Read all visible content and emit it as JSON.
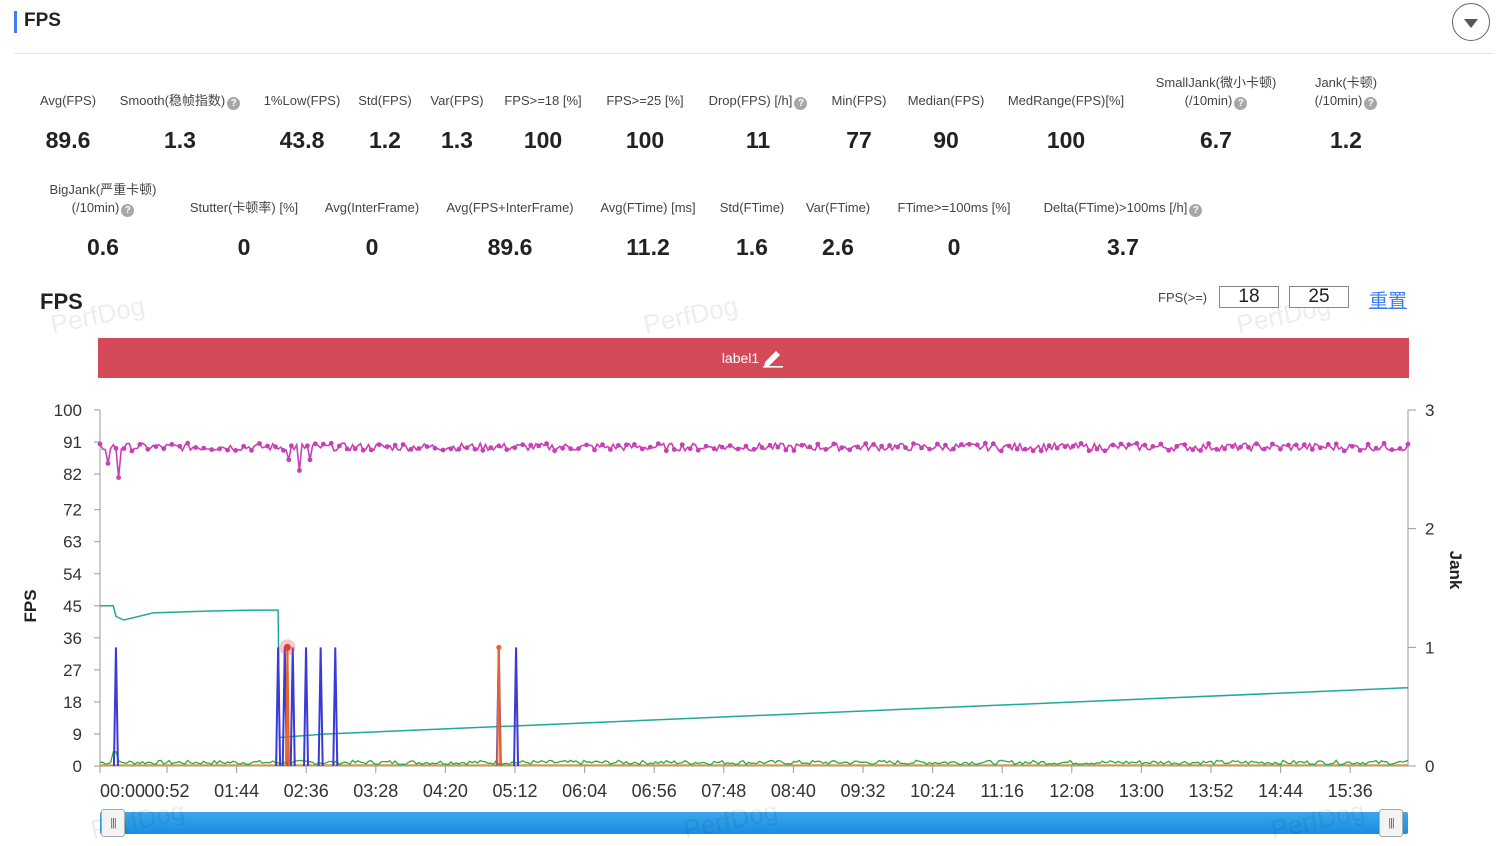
{
  "header": {
    "title": "FPS"
  },
  "metrics_row1": [
    {
      "label": "Avg(FPS)",
      "value": "89.6",
      "help": false
    },
    {
      "label": "Smooth(稳帧指数)",
      "value": "1.3",
      "help": true
    },
    {
      "label": "1%Low(FPS)",
      "value": "43.8",
      "help": false
    },
    {
      "label": "Std(FPS)",
      "value": "1.2",
      "help": false
    },
    {
      "label": "Var(FPS)",
      "value": "1.3",
      "help": false
    },
    {
      "label": "FPS>=18 [%]",
      "value": "100",
      "help": false
    },
    {
      "label": "FPS>=25 [%]",
      "value": "100",
      "help": false
    },
    {
      "label": "Drop(FPS) [/h]",
      "value": "11",
      "help": true
    },
    {
      "label": "Min(FPS)",
      "value": "77",
      "help": false
    },
    {
      "label": "Median(FPS)",
      "value": "90",
      "help": false
    },
    {
      "label": "MedRange(FPS)[%]",
      "value": "100",
      "help": false
    },
    {
      "label": "SmallJank(微小卡顿)",
      "label2": "(/10min)",
      "value": "6.7",
      "help": true
    },
    {
      "label": "Jank(卡顿)",
      "label2": "(/10min)",
      "value": "1.2",
      "help": true
    }
  ],
  "metrics_row2": [
    {
      "label": "BigJank(严重卡顿)",
      "label2": "(/10min)",
      "value": "0.6",
      "help": true
    },
    {
      "label": "Stutter(卡顿率) [%]",
      "value": "0",
      "help": false
    },
    {
      "label": "Avg(InterFrame)",
      "value": "0",
      "help": false
    },
    {
      "label": "Avg(FPS+InterFrame)",
      "value": "89.6",
      "help": false
    },
    {
      "label": "Avg(FTime) [ms]",
      "value": "11.2",
      "help": false
    },
    {
      "label": "Std(FTime)",
      "value": "1.6",
      "help": false
    },
    {
      "label": "Var(FTime)",
      "value": "2.6",
      "help": false
    },
    {
      "label": "FTime>=100ms [%]",
      "value": "0",
      "help": false
    },
    {
      "label": "Delta(FTime)>100ms [/h]",
      "value": "3.7",
      "help": true
    }
  ],
  "help_glyph": "?",
  "chart_header": {
    "title": "FPS",
    "fps_threshold_label": "FPS(>=)",
    "threshold_1": "18",
    "threshold_2": "25",
    "reset_label": "重置",
    "watermark": "PerfDog"
  },
  "label_bar": {
    "text": "label1",
    "color": "#d44a59",
    "icon": "pencil-icon"
  },
  "chart_data": {
    "type": "line",
    "y_axis": {
      "label": "FPS",
      "ticks": [
        0,
        9,
        18,
        27,
        36,
        45,
        54,
        63,
        72,
        82,
        91,
        100
      ],
      "range": [
        0,
        100
      ]
    },
    "y2_axis": {
      "label": "Jank",
      "ticks": [
        0,
        1,
        2,
        3
      ],
      "range": [
        0,
        3
      ]
    },
    "x_axis": {
      "tick_labels": [
        "00:00",
        "00:52",
        "01:44",
        "02:36",
        "03:28",
        "04:20",
        "05:12",
        "06:04",
        "06:56",
        "07:48",
        "08:40",
        "09:32",
        "10:24",
        "11:16",
        "12:08",
        "13:00",
        "13:52",
        "14:44",
        "15:36"
      ],
      "duration_seconds": 984
    },
    "series": [
      {
        "color": "#c840b6",
        "axis": "left",
        "baseline": 89.6,
        "dips": [
          [
            6,
            85
          ],
          [
            14,
            81
          ],
          [
            142,
            86
          ],
          [
            145,
            77
          ],
          [
            150,
            83
          ],
          [
            158,
            86
          ],
          [
            175,
            87
          ],
          [
            245,
            80
          ],
          [
            305,
            85
          ],
          [
            311,
            78
          ]
        ]
      },
      {
        "color": "#1fa99a",
        "axis": "left",
        "points": [
          [
            0,
            45
          ],
          [
            10,
            45
          ],
          [
            12,
            42
          ],
          [
            18,
            41
          ],
          [
            40,
            43
          ],
          [
            80,
            43.5
          ],
          [
            120,
            43.8
          ],
          [
            134,
            43.8
          ],
          [
            135,
            8
          ],
          [
            170,
            9
          ],
          [
            984,
            22
          ]
        ]
      },
      {
        "color": "#3a3ad6",
        "axis": "right",
        "points": [
          [
            12,
            1
          ],
          [
            134,
            1
          ],
          [
            139,
            1
          ],
          [
            145,
            1
          ],
          [
            155,
            1
          ],
          [
            166,
            1
          ],
          [
            177,
            1
          ],
          [
            300,
            1
          ],
          [
            313,
            1
          ]
        ]
      },
      {
        "color": "#e8632b",
        "axis": "right",
        "points": [
          [
            141,
            1
          ],
          [
            300,
            1
          ]
        ]
      },
      {
        "color": "#2fa84a",
        "axis": "left",
        "baseline": 1
      },
      {
        "color": "#e6a135",
        "axis": "left",
        "baseline": 0.3
      }
    ],
    "highlight_point": [
      141,
      1
    ],
    "grid": false
  },
  "slider": {
    "handle_glyph": "|||"
  }
}
